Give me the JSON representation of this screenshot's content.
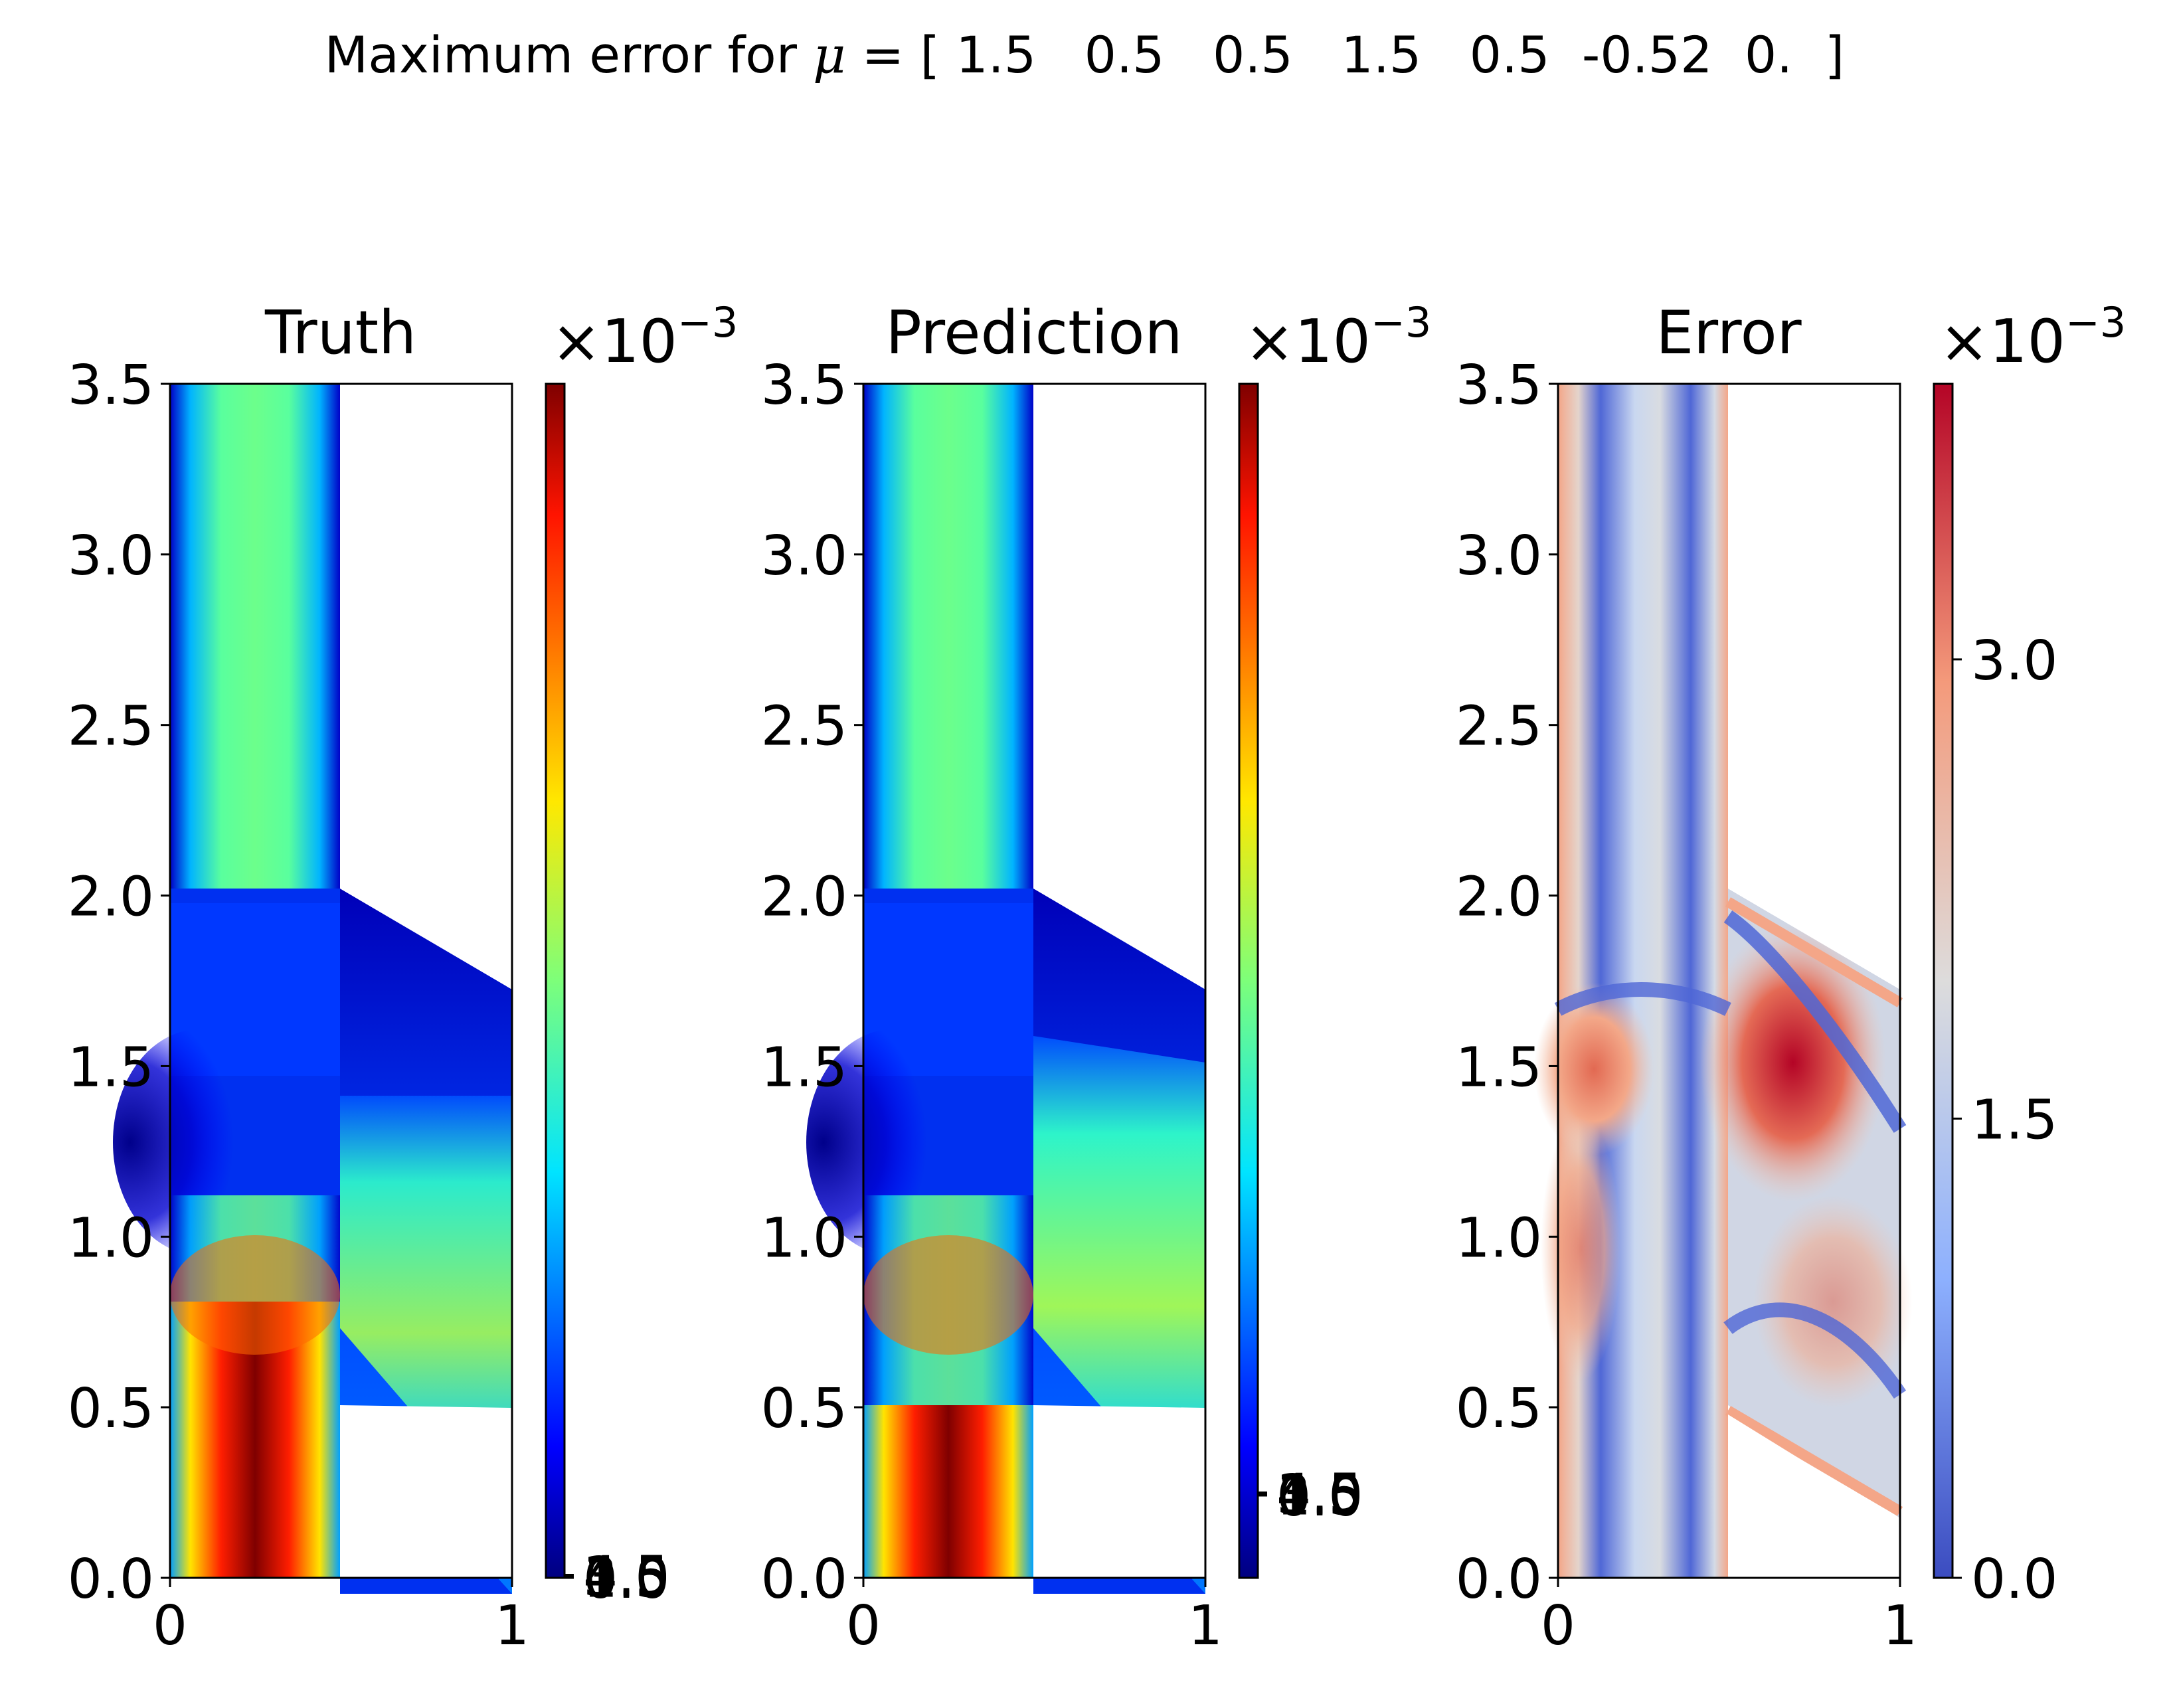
{
  "figure": {
    "title_prefix": "Maximum error for ",
    "title_symbol": "μ",
    "title_values": " = [ 1.5   0.5   0.5   1.5   0.5  -0.52  0.  ]"
  },
  "panels": [
    {
      "key": "truth",
      "title": "Truth",
      "cmap": "jet",
      "colorbar_multiplier": "×10",
      "colorbar_exponent": "−3",
      "colorbar_tick_labels": [
        "0.0",
        "1.5",
        "3.0",
        "4.5"
      ]
    },
    {
      "key": "prediction",
      "title": "Prediction",
      "cmap": "jet",
      "colorbar_multiplier": "×10",
      "colorbar_exponent": "−3",
      "colorbar_tick_labels": [
        "0.0",
        "1.5",
        "3.0",
        "4.5"
      ]
    },
    {
      "key": "error",
      "title": "Error",
      "cmap": "coolwarm",
      "colorbar_multiplier": "×10",
      "colorbar_exponent": "−3",
      "colorbar_tick_labels": [
        "0.0",
        "1.5",
        "3.0"
      ]
    }
  ],
  "chart_data": {
    "type": "heatmap",
    "xlim": [
      0,
      1
    ],
    "ylim": [
      0,
      3.5
    ],
    "xticks": [
      "0",
      "1"
    ],
    "yticks": [
      "0.0",
      "0.5",
      "1.0",
      "1.5",
      "2.0",
      "2.5",
      "3.0",
      "3.5"
    ],
    "domain_outline": [
      [
        0,
        0
      ],
      [
        0.5,
        0
      ],
      [
        0.5,
        0.5
      ],
      [
        1,
        0.21
      ],
      [
        1,
        1.71
      ],
      [
        0.5,
        2.0
      ],
      [
        0.5,
        3.5
      ],
      [
        0,
        3.5
      ]
    ],
    "error_colorbar_range": [
      0,
      0.0039
    ],
    "colors": {
      "jet_max": "#7f0000",
      "jet_min": "#00007f",
      "coolwarm_max": "#b40426",
      "coolwarm_min": "#3b4cc0"
    }
  }
}
